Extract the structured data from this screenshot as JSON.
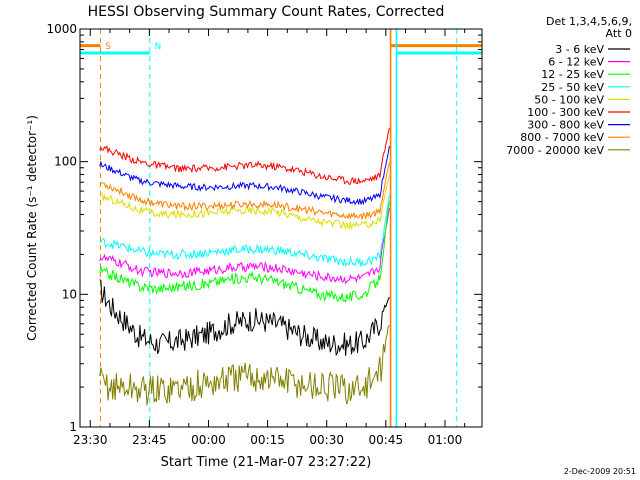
{
  "chart_data": {
    "type": "line",
    "title": "HESSI Observing Summary Count Rates, Corrected",
    "xlabel": "Start Time (21-Mar-07 23:27:22)",
    "ylabel": "Corrected Count Rate (s⁻¹ detector⁻¹)",
    "x_unit": "minutes from 21-Mar-07 23:27:22",
    "xlim": [
      0,
      102
    ],
    "ylim": [
      1,
      1000
    ],
    "y_scale": "log",
    "x_ticks": [
      {
        "label": "23:30",
        "x": 2.6
      },
      {
        "label": "23:45",
        "x": 17.6
      },
      {
        "label": "00:00",
        "x": 32.6
      },
      {
        "label": "00:15",
        "x": 47.6
      },
      {
        "label": "00:30",
        "x": 62.6
      },
      {
        "label": "00:45",
        "x": 77.6
      },
      {
        "label": "01:00",
        "x": 92.6
      }
    ],
    "y_ticks": [
      {
        "label": "1",
        "value": 1
      },
      {
        "label": "10",
        "value": 10
      },
      {
        "label": "100",
        "value": 100
      },
      {
        "label": "1000",
        "value": 1000
      }
    ],
    "legend": {
      "position": "top-right",
      "header1": "Det 1,3,4,5,6,9,",
      "header2": "Att 0"
    },
    "series": [
      {
        "name": "3 - 6 keV",
        "color": "#000000",
        "x": [
          5,
          8,
          12,
          15,
          20,
          26,
          32,
          38,
          44,
          50,
          56,
          62,
          68,
          72,
          76,
          78.5
        ],
        "y": [
          11,
          8,
          6,
          4.8,
          4.2,
          4.5,
          5,
          6,
          6.5,
          6,
          5,
          4.3,
          4.2,
          4.4,
          6,
          10
        ]
      },
      {
        "name": "6 - 12 keV",
        "color": "#ff00ff",
        "x": [
          5,
          8,
          12,
          15,
          20,
          26,
          32,
          38,
          44,
          50,
          56,
          62,
          68,
          72,
          76,
          78.5
        ],
        "y": [
          19,
          18,
          16.5,
          15,
          14.5,
          14.5,
          15,
          15.8,
          16.2,
          15.8,
          14.5,
          13.5,
          13,
          13.2,
          16,
          45
        ]
      },
      {
        "name": "12 - 25 keV",
        "color": "#00ff00",
        "x": [
          5,
          8,
          12,
          15,
          20,
          26,
          32,
          38,
          44,
          50,
          56,
          62,
          68,
          72,
          76,
          78.5
        ],
        "y": [
          15,
          14,
          12.5,
          11.5,
          11,
          11.5,
          12,
          13,
          13.5,
          12.5,
          11,
          9.8,
          9.5,
          10,
          13,
          50
        ]
      },
      {
        "name": "25 - 50 keV",
        "color": "#00ffff",
        "x": [
          5,
          8,
          12,
          15,
          20,
          26,
          32,
          38,
          44,
          50,
          56,
          62,
          68,
          72,
          76,
          78.5
        ],
        "y": [
          25,
          24,
          22.5,
          21,
          20,
          20,
          20.5,
          21.5,
          22,
          21.5,
          20,
          18.5,
          17.5,
          17.5,
          19,
          55
        ]
      },
      {
        "name": "50 - 100 keV",
        "color": "#dddd00",
        "x": [
          5,
          8,
          12,
          15,
          20,
          26,
          32,
          38,
          44,
          50,
          56,
          62,
          68,
          72,
          76,
          78.5
        ],
        "y": [
          55,
          52,
          47,
          43,
          40,
          40,
          41,
          42.5,
          43,
          42,
          38,
          35,
          33,
          33,
          36,
          80
        ]
      },
      {
        "name": "100 - 300 keV",
        "color": "#ff0000",
        "x": [
          5,
          8,
          12,
          15,
          20,
          26,
          32,
          38,
          44,
          50,
          56,
          62,
          68,
          72,
          76,
          78.5
        ],
        "y": [
          130,
          120,
          108,
          100,
          93,
          88,
          89,
          92,
          94,
          92,
          85,
          77,
          72,
          72,
          78,
          180
        ]
      },
      {
        "name": "300 - 800 keV",
        "color": "#0000ff",
        "x": [
          5,
          8,
          12,
          15,
          20,
          26,
          32,
          38,
          44,
          50,
          56,
          62,
          68,
          72,
          76,
          78.5
        ],
        "y": [
          95,
          88,
          78,
          72,
          68,
          65,
          64,
          65,
          66,
          64,
          59,
          54,
          51,
          50,
          55,
          130
        ]
      },
      {
        "name": "800 - 7000 keV",
        "color": "#ff8000",
        "x": [
          5,
          8,
          12,
          15,
          20,
          26,
          32,
          38,
          44,
          50,
          56,
          62,
          68,
          72,
          76,
          78.5
        ],
        "y": [
          70,
          64,
          57,
          52,
          48,
          46,
          46,
          47,
          48,
          47,
          44,
          41,
          39,
          39,
          42,
          100
        ]
      },
      {
        "name": "7000 - 20000 keV",
        "color": "#808000",
        "x": [
          5,
          8,
          12,
          15,
          20,
          26,
          32,
          38,
          44,
          50,
          56,
          62,
          68,
          72,
          76,
          78.5
        ],
        "y": [
          2.2,
          2,
          2,
          1.9,
          1.9,
          2,
          2.1,
          2.3,
          2.4,
          2.3,
          2.1,
          2,
          1.9,
          2,
          2.5,
          6
        ]
      }
    ],
    "annotations": [
      {
        "text": "S",
        "color": "#ff8000"
      },
      {
        "text": "N",
        "color": "#00ffff"
      }
    ],
    "bands": [
      {
        "kind": "attenuator-bar",
        "color": "#ff8000",
        "level": 750,
        "ranges": [
          [
            0,
            5.2
          ],
          [
            78.8,
            102
          ]
        ]
      },
      {
        "kind": "night-bar",
        "color": "#00ffff",
        "level": 660,
        "ranges": [
          [
            0,
            17.7
          ],
          [
            80.3,
            102
          ]
        ]
      }
    ],
    "markers": [
      {
        "kind": "saa-dashed",
        "color": "#ff8000",
        "x": 5.2
      },
      {
        "kind": "night-dashed",
        "color": "#00ffff",
        "x": 17.7
      },
      {
        "kind": "night-dashed",
        "color": "#00ffff",
        "x": 95.6
      },
      {
        "kind": "attenuator-solid",
        "color": "#ff8000",
        "x": 78.8
      },
      {
        "kind": "night-solid",
        "color": "#00ffff",
        "x": 80.3
      }
    ]
  },
  "footer": {
    "timestamp": "2-Dec-2009 20:51"
  }
}
